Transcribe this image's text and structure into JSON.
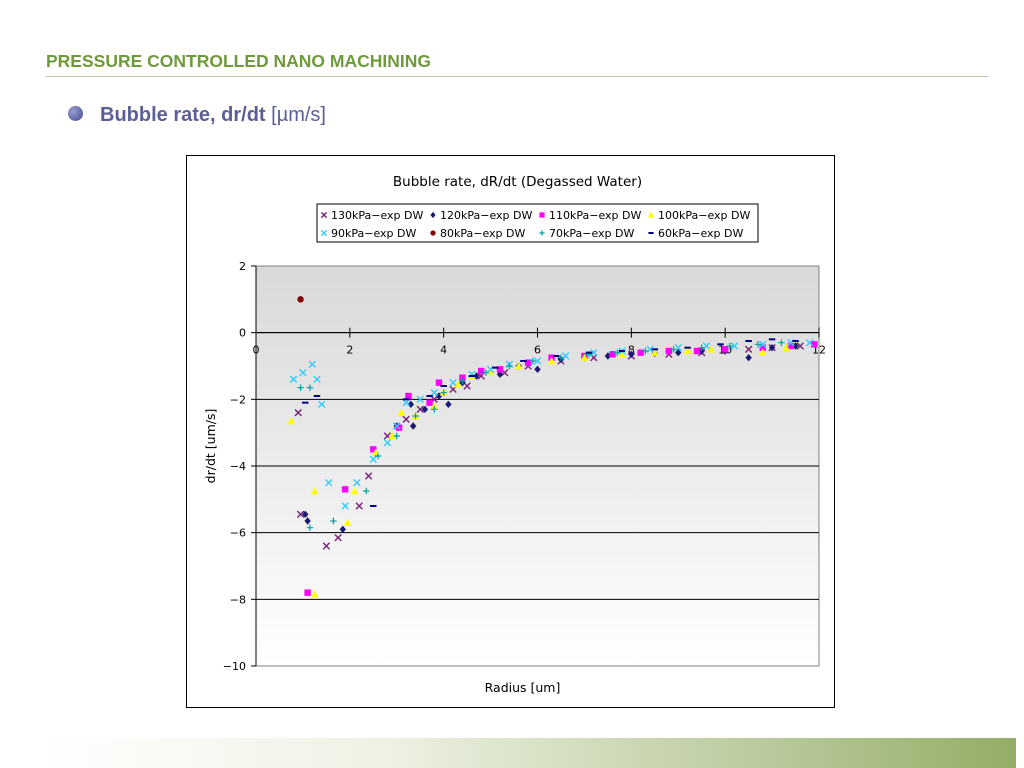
{
  "slide": {
    "title": "PRESSURE CONTROLLED NANO MACHINING",
    "bullet": {
      "bold_text": "Bubble rate, dr/dt",
      "unit_text": " [µm/s]"
    }
  },
  "colors": {
    "title_green": "#6f9a3c",
    "bullet_text": "#5c5f96",
    "plot_bg_top": "#d9d9d9",
    "plot_bg_bottom": "#ffffff"
  },
  "chart_data": {
    "type": "scatter",
    "title": "Bubble rate, dR/dt (Degassed Water)",
    "xlabel": "Radius [um]",
    "ylabel": "dr/dt [um/s]",
    "xlim": [
      0,
      12
    ],
    "ylim": [
      -10,
      2
    ],
    "xticks": [
      0,
      2,
      4,
      6,
      8,
      10,
      12
    ],
    "yticks": [
      2,
      0,
      -2,
      -4,
      -6,
      -8,
      -10
    ],
    "x_tick_labels": [
      "0",
      "2",
      "4",
      "6",
      "8",
      "10",
      "12"
    ],
    "y_tick_labels": [
      "2",
      "0",
      "−2",
      "−4",
      "−6",
      "−8",
      "−10"
    ],
    "grid": "horizontal",
    "legend_position": "top",
    "series": [
      {
        "name": "130kPa−exp DW",
        "marker": "x",
        "color": "#7a1f7a",
        "points": [
          [
            0.9,
            -2.4
          ],
          [
            0.95,
            -5.45
          ],
          [
            1.5,
            -6.4
          ],
          [
            1.75,
            -6.15
          ],
          [
            2.2,
            -5.2
          ],
          [
            2.4,
            -4.3
          ],
          [
            2.8,
            -3.1
          ],
          [
            3.0,
            -2.8
          ],
          [
            3.2,
            -2.6
          ],
          [
            3.5,
            -2.3
          ],
          [
            3.8,
            -2.0
          ],
          [
            4.2,
            -1.7
          ],
          [
            4.5,
            -1.6
          ],
          [
            4.8,
            -1.3
          ],
          [
            5.3,
            -1.2
          ],
          [
            5.8,
            -1.0
          ],
          [
            6.5,
            -0.85
          ],
          [
            7.2,
            -0.75
          ],
          [
            8.0,
            -0.7
          ],
          [
            8.8,
            -0.65
          ],
          [
            9.5,
            -0.6
          ],
          [
            10.5,
            -0.5
          ],
          [
            11.0,
            -0.45
          ],
          [
            11.6,
            -0.4
          ]
        ]
      },
      {
        "name": "120kPa−exp DW",
        "marker": "diamond",
        "color": "#1a1a70",
        "points": [
          [
            1.05,
            -5.45
          ],
          [
            1.1,
            -5.65
          ],
          [
            1.85,
            -5.9
          ],
          [
            3.0,
            -2.8
          ],
          [
            3.3,
            -2.15
          ],
          [
            3.35,
            -2.8
          ],
          [
            3.6,
            -2.3
          ],
          [
            3.9,
            -1.9
          ],
          [
            4.1,
            -2.15
          ],
          [
            4.4,
            -1.5
          ],
          [
            4.7,
            -1.3
          ],
          [
            5.2,
            -1.25
          ],
          [
            5.6,
            -1.0
          ],
          [
            6.0,
            -1.1
          ],
          [
            6.5,
            -0.8
          ],
          [
            7.0,
            -0.75
          ],
          [
            7.5,
            -0.7
          ],
          [
            8.0,
            -0.65
          ],
          [
            8.5,
            -0.62
          ],
          [
            9.0,
            -0.6
          ],
          [
            9.5,
            -0.55
          ],
          [
            10.0,
            -0.55
          ],
          [
            10.5,
            -0.75
          ],
          [
            11.0,
            -0.45
          ],
          [
            11.5,
            -0.4
          ]
        ]
      },
      {
        "name": "110kPa−exp DW",
        "marker": "square",
        "color": "#ff00ff",
        "points": [
          [
            1.1,
            -7.8
          ],
          [
            1.9,
            -4.7
          ],
          [
            2.5,
            -3.5
          ],
          [
            3.05,
            -2.85
          ],
          [
            3.25,
            -1.9
          ],
          [
            3.7,
            -2.1
          ],
          [
            3.9,
            -1.5
          ],
          [
            4.4,
            -1.35
          ],
          [
            4.8,
            -1.15
          ],
          [
            5.2,
            -1.1
          ],
          [
            5.8,
            -0.9
          ],
          [
            6.3,
            -0.75
          ],
          [
            7.0,
            -0.7
          ],
          [
            7.6,
            -0.65
          ],
          [
            8.2,
            -0.6
          ],
          [
            8.8,
            -0.55
          ],
          [
            9.4,
            -0.55
          ],
          [
            10.0,
            -0.5
          ],
          [
            10.8,
            -0.45
          ],
          [
            11.4,
            -0.4
          ],
          [
            11.9,
            -0.35
          ]
        ]
      },
      {
        "name": "100kPa−exp DW",
        "marker": "triangle",
        "color": "#ffff00",
        "points": [
          [
            0.75,
            -2.65
          ],
          [
            1.25,
            -7.85
          ],
          [
            1.25,
            -4.75
          ],
          [
            1.95,
            -5.7
          ],
          [
            2.1,
            -4.75
          ],
          [
            2.55,
            -3.6
          ],
          [
            2.9,
            -3.1
          ],
          [
            3.1,
            -2.4
          ],
          [
            3.4,
            -2.5
          ],
          [
            3.8,
            -2.2
          ],
          [
            4.0,
            -1.8
          ],
          [
            4.3,
            -1.55
          ],
          [
            4.6,
            -1.3
          ],
          [
            5.0,
            -1.15
          ],
          [
            5.6,
            -1.0
          ],
          [
            6.3,
            -0.85
          ],
          [
            7.0,
            -0.75
          ],
          [
            7.8,
            -0.65
          ],
          [
            8.5,
            -0.6
          ],
          [
            9.2,
            -0.55
          ],
          [
            9.7,
            -0.5
          ],
          [
            10.8,
            -0.6
          ],
          [
            11.3,
            -0.45
          ]
        ]
      },
      {
        "name": "90kPa−exp DW",
        "marker": "x",
        "color": "#33ccff",
        "points": [
          [
            0.8,
            -1.4
          ],
          [
            1.0,
            -1.2
          ],
          [
            1.2,
            -0.95
          ],
          [
            1.3,
            -1.4
          ],
          [
            1.4,
            -2.15
          ],
          [
            1.55,
            -4.5
          ],
          [
            1.9,
            -5.2
          ],
          [
            2.15,
            -4.5
          ],
          [
            2.5,
            -3.8
          ],
          [
            2.8,
            -3.3
          ],
          [
            3.0,
            -2.8
          ],
          [
            3.2,
            -2.1
          ],
          [
            3.5,
            -2.0
          ],
          [
            3.8,
            -1.8
          ],
          [
            4.2,
            -1.5
          ],
          [
            4.6,
            -1.25
          ],
          [
            5.0,
            -1.1
          ],
          [
            5.4,
            -0.95
          ],
          [
            6.0,
            -0.85
          ],
          [
            6.6,
            -0.7
          ],
          [
            7.2,
            -0.6
          ],
          [
            7.8,
            -0.55
          ],
          [
            8.4,
            -0.5
          ],
          [
            9.0,
            -0.45
          ],
          [
            9.6,
            -0.4
          ],
          [
            10.2,
            -0.4
          ],
          [
            10.8,
            -0.35
          ],
          [
            11.4,
            -0.3
          ],
          [
            11.8,
            -0.3
          ]
        ]
      },
      {
        "name": "80kPa−exp DW",
        "marker": "circle",
        "color": "#800000",
        "points": [
          [
            0.95,
            1.0
          ]
        ]
      },
      {
        "name": "70kPa−exp DW",
        "marker": "plus",
        "color": "#00a0a0",
        "points": [
          [
            0.95,
            -1.65
          ],
          [
            1.15,
            -1.65
          ],
          [
            1.15,
            -5.85
          ],
          [
            1.65,
            -5.65
          ],
          [
            2.35,
            -4.75
          ],
          [
            2.6,
            -3.7
          ],
          [
            3.0,
            -3.1
          ],
          [
            3.4,
            -2.5
          ],
          [
            3.8,
            -2.3
          ],
          [
            4.0,
            -1.8
          ],
          [
            4.4,
            -1.45
          ],
          [
            4.9,
            -1.2
          ],
          [
            5.4,
            -1.0
          ],
          [
            5.9,
            -0.85
          ],
          [
            6.5,
            -0.75
          ],
          [
            7.1,
            -0.65
          ],
          [
            7.7,
            -0.6
          ],
          [
            8.3,
            -0.55
          ],
          [
            8.9,
            -0.5
          ],
          [
            9.5,
            -0.45
          ],
          [
            10.1,
            -0.4
          ],
          [
            10.7,
            -0.35
          ],
          [
            11.2,
            -0.3
          ]
        ]
      },
      {
        "name": "60kPa−exp DW",
        "marker": "dash",
        "color": "#000080",
        "points": [
          [
            1.05,
            -2.1
          ],
          [
            1.3,
            -1.9
          ],
          [
            2.5,
            -5.2
          ],
          [
            3.2,
            -2.0
          ],
          [
            3.7,
            -1.9
          ],
          [
            4.0,
            -1.6
          ],
          [
            4.6,
            -1.3
          ],
          [
            5.1,
            -1.05
          ],
          [
            5.7,
            -0.85
          ],
          [
            6.4,
            -0.7
          ],
          [
            7.1,
            -0.6
          ],
          [
            7.8,
            -0.55
          ],
          [
            8.5,
            -0.5
          ],
          [
            9.2,
            -0.45
          ],
          [
            9.9,
            -0.35
          ],
          [
            10.5,
            -0.25
          ],
          [
            11.0,
            -0.2
          ],
          [
            11.5,
            -0.25
          ]
        ]
      }
    ]
  }
}
